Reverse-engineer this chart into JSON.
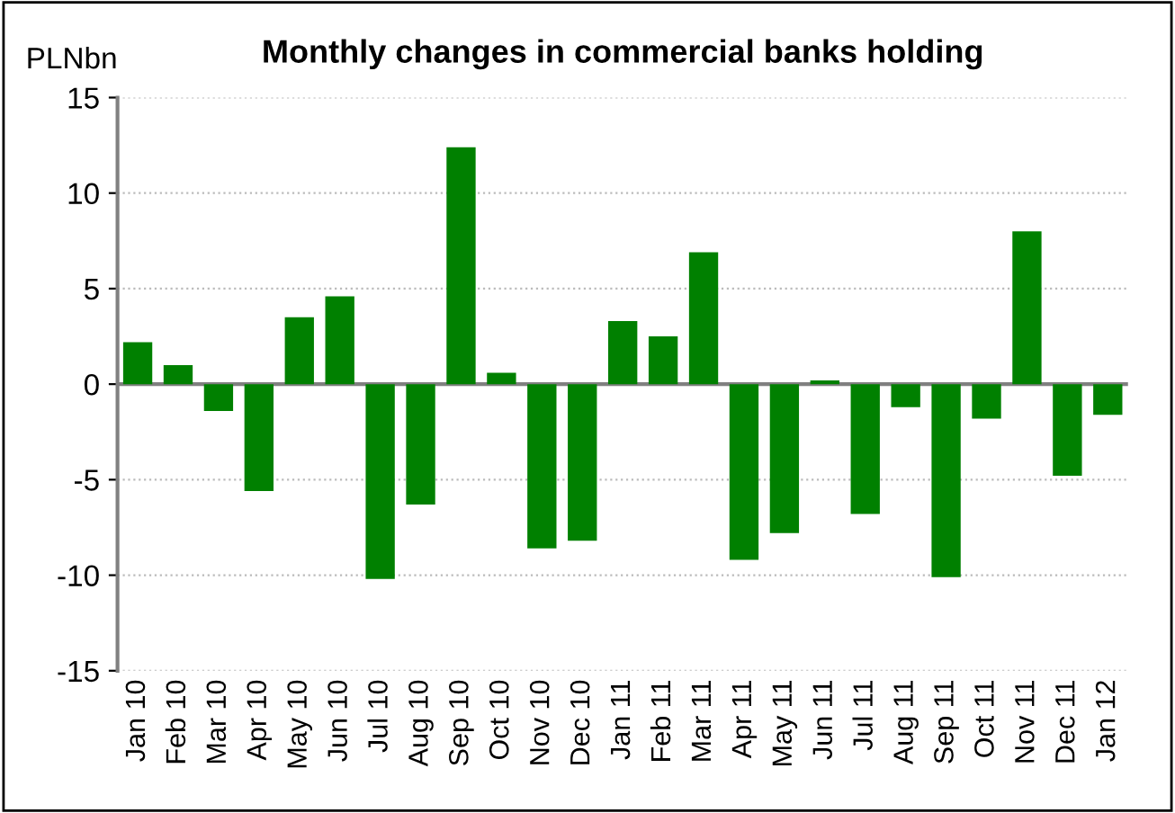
{
  "chart_data": {
    "type": "bar",
    "title": "Monthly changes in commercial banks holding",
    "ylabel": "PLNbn",
    "categories": [
      "Jan 10",
      "Feb 10",
      "Mar 10",
      "Apr 10",
      "May 10",
      "Jun 10",
      "Jul 10",
      "Aug 10",
      "Sep 10",
      "Oct 10",
      "Nov 10",
      "Dec 10",
      "Jan 11",
      "Feb 11",
      "Mar 11",
      "Apr 11",
      "May 11",
      "Jun 11",
      "Jul 11",
      "Aug 11",
      "Sep 11",
      "Oct 11",
      "Nov 11",
      "Dec 11",
      "Jan 12"
    ],
    "values": [
      2.2,
      1.0,
      -1.4,
      -5.6,
      3.5,
      4.6,
      -10.2,
      -6.3,
      12.4,
      0.6,
      -8.6,
      -8.2,
      3.3,
      2.5,
      6.9,
      -9.2,
      -7.8,
      0.2,
      -6.8,
      -1.2,
      -10.1,
      -1.8,
      8.0,
      -4.8,
      -1.6
    ],
    "color": "#008000",
    "ylim": [
      -15,
      15
    ],
    "yticks": [
      -15,
      -10,
      -5,
      0,
      5,
      10,
      15
    ],
    "grid": "y",
    "legend": false
  }
}
